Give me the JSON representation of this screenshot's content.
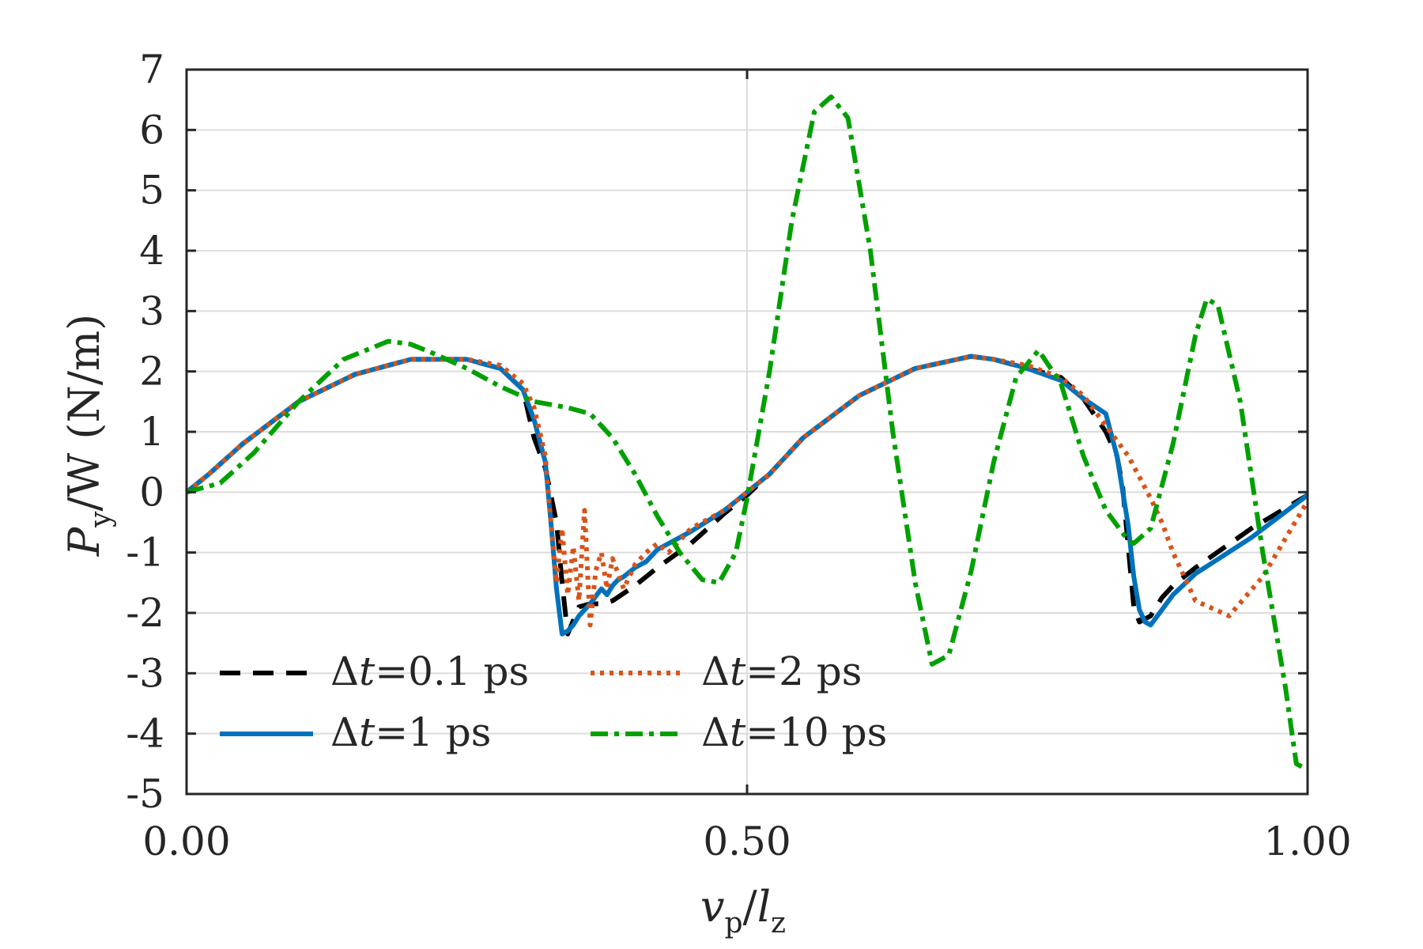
{
  "chart_data": {
    "type": "line",
    "xlabel": "v_p/l_z",
    "xlabel_parts": {
      "v": "v",
      "p": "p",
      "slash": "/",
      "l": "l",
      "z": "z"
    },
    "ylabel": "P_y/W (N/m)",
    "ylabel_parts": {
      "P": "P",
      "y": "y",
      "rest": "/W (N/m)"
    },
    "xlim": [
      0,
      1
    ],
    "ylim": [
      -5,
      7
    ],
    "xticks": [
      0,
      0.5,
      1
    ],
    "xtick_labels": [
      "0.00",
      "0.50",
      "1.00"
    ],
    "yticks": [
      -5,
      -4,
      -3,
      -2,
      -1,
      0,
      1,
      2,
      3,
      4,
      5,
      6,
      7
    ],
    "ytick_labels": [
      "-5",
      "-4",
      "-3",
      "-2",
      "-1",
      "0",
      "1",
      "2",
      "3",
      "4",
      "5",
      "6",
      "7"
    ],
    "grid": {
      "horizontal": true,
      "vertical": true
    },
    "legend_placement": "bottom-left",
    "series": [
      {
        "name": "Δt=0.1 ps",
        "label_parts": {
          "delta": "Δ",
          "t": "t",
          "rest": "=0.1 ps"
        },
        "color": "#000000",
        "style": "dashed",
        "x": [
          0,
          0.02,
          0.05,
          0.1,
          0.15,
          0.2,
          0.25,
          0.28,
          0.3,
          0.305,
          0.31,
          0.32,
          0.33,
          0.335,
          0.34,
          0.35,
          0.36,
          0.37,
          0.38,
          0.4,
          0.42,
          0.45,
          0.48,
          0.5,
          0.52,
          0.55,
          0.6,
          0.65,
          0.7,
          0.72,
          0.75,
          0.78,
          0.8,
          0.82,
          0.83,
          0.835,
          0.84,
          0.845,
          0.85,
          0.86,
          0.87,
          0.88,
          0.9,
          0.95,
          1.0
        ],
        "y": [
          0,
          0.3,
          0.8,
          1.5,
          1.95,
          2.2,
          2.2,
          2.05,
          1.7,
          1.3,
          0.9,
          0.4,
          -0.5,
          -1.5,
          -2.35,
          -1.9,
          -1.85,
          -1.85,
          -1.8,
          -1.55,
          -1.25,
          -0.85,
          -0.35,
          -0.05,
          0.3,
          0.9,
          1.6,
          2.05,
          2.25,
          2.2,
          2.05,
          1.9,
          1.55,
          1.0,
          0.6,
          0.1,
          -0.9,
          -1.9,
          -2.15,
          -2.05,
          -1.75,
          -1.55,
          -1.25,
          -0.6,
          -0.05
        ]
      },
      {
        "name": "Δt=1 ps",
        "label_parts": {
          "delta": "Δ",
          "t": "t",
          "rest": "=1 ps"
        },
        "color": "#0072BD",
        "style": "solid",
        "x": [
          0,
          0.02,
          0.05,
          0.1,
          0.15,
          0.2,
          0.25,
          0.28,
          0.3,
          0.31,
          0.32,
          0.325,
          0.33,
          0.335,
          0.34,
          0.345,
          0.35,
          0.36,
          0.37,
          0.375,
          0.38,
          0.385,
          0.39,
          0.4,
          0.41,
          0.42,
          0.45,
          0.48,
          0.5,
          0.52,
          0.55,
          0.6,
          0.65,
          0.7,
          0.72,
          0.75,
          0.78,
          0.8,
          0.82,
          0.83,
          0.84,
          0.845,
          0.85,
          0.855,
          0.86,
          0.87,
          0.88,
          0.9,
          0.95,
          1.0
        ],
        "y": [
          0,
          0.3,
          0.8,
          1.5,
          1.95,
          2.2,
          2.2,
          2.05,
          1.7,
          1.2,
          0.5,
          -0.5,
          -1.6,
          -2.35,
          -2.3,
          -2.2,
          -2.05,
          -1.85,
          -1.6,
          -1.7,
          -1.55,
          -1.45,
          -1.4,
          -1.25,
          -1.15,
          -0.95,
          -0.65,
          -0.3,
          0.0,
          0.3,
          0.9,
          1.6,
          2.05,
          2.25,
          2.2,
          2.05,
          1.85,
          1.55,
          1.3,
          0.6,
          -0.55,
          -1.4,
          -1.95,
          -2.15,
          -2.2,
          -1.95,
          -1.7,
          -1.35,
          -0.75,
          -0.05
        ]
      },
      {
        "name": "Δt=2 ps",
        "label_parts": {
          "delta": "Δ",
          "t": "t",
          "rest": "=2 ps"
        },
        "color": "#D95319",
        "style": "dotted",
        "x": [
          0,
          0.02,
          0.05,
          0.1,
          0.15,
          0.2,
          0.25,
          0.28,
          0.3,
          0.31,
          0.32,
          0.325,
          0.33,
          0.335,
          0.34,
          0.345,
          0.35,
          0.355,
          0.36,
          0.365,
          0.37,
          0.375,
          0.38,
          0.39,
          0.4,
          0.41,
          0.42,
          0.43,
          0.45,
          0.48,
          0.5,
          0.52,
          0.55,
          0.6,
          0.65,
          0.7,
          0.72,
          0.75,
          0.78,
          0.8,
          0.82,
          0.84,
          0.86,
          0.87,
          0.88,
          0.9,
          0.93,
          0.96,
          1.0
        ],
        "y": [
          0,
          0.3,
          0.8,
          1.5,
          1.95,
          2.2,
          2.2,
          2.1,
          1.8,
          1.4,
          0.6,
          -0.5,
          -1.5,
          -0.6,
          -1.7,
          -0.9,
          -1.8,
          -0.3,
          -2.2,
          -1.3,
          -1.0,
          -1.6,
          -1.1,
          -1.6,
          -1.2,
          -1.0,
          -0.85,
          -1.0,
          -0.6,
          -0.3,
          0.0,
          0.3,
          0.9,
          1.6,
          2.05,
          2.25,
          2.2,
          2.1,
          1.9,
          1.6,
          1.1,
          0.6,
          -0.1,
          -0.5,
          -1.0,
          -1.8,
          -2.05,
          -1.4,
          -0.15
        ]
      },
      {
        "name": "Δt=10 ps",
        "label_parts": {
          "delta": "Δ",
          "t": "t",
          "rest": "=10 ps"
        },
        "color": "#00A000",
        "style": "dashdot",
        "x": [
          0,
          0.03,
          0.06,
          0.1,
          0.14,
          0.18,
          0.2,
          0.22,
          0.25,
          0.28,
          0.31,
          0.34,
          0.36,
          0.38,
          0.4,
          0.42,
          0.44,
          0.46,
          0.475,
          0.49,
          0.5,
          0.52,
          0.54,
          0.56,
          0.575,
          0.59,
          0.61,
          0.63,
          0.65,
          0.665,
          0.68,
          0.7,
          0.72,
          0.74,
          0.76,
          0.78,
          0.8,
          0.82,
          0.84,
          0.845,
          0.86,
          0.88,
          0.9,
          0.91,
          0.92,
          0.94,
          0.96,
          0.98,
          0.99,
          1.0
        ],
        "y": [
          0,
          0.15,
          0.65,
          1.5,
          2.2,
          2.5,
          2.45,
          2.3,
          2.05,
          1.75,
          1.5,
          1.4,
          1.3,
          0.9,
          0.3,
          -0.4,
          -1.0,
          -1.45,
          -1.5,
          -1.0,
          -0.1,
          2.0,
          4.5,
          6.3,
          6.55,
          6.2,
          4.0,
          1.0,
          -1.5,
          -2.85,
          -2.7,
          -1.3,
          0.5,
          1.9,
          2.35,
          1.8,
          0.6,
          -0.3,
          -0.8,
          -0.85,
          -0.6,
          0.8,
          2.6,
          3.2,
          3.1,
          1.5,
          -1.0,
          -3.2,
          -4.5,
          -4.6
        ]
      }
    ]
  }
}
